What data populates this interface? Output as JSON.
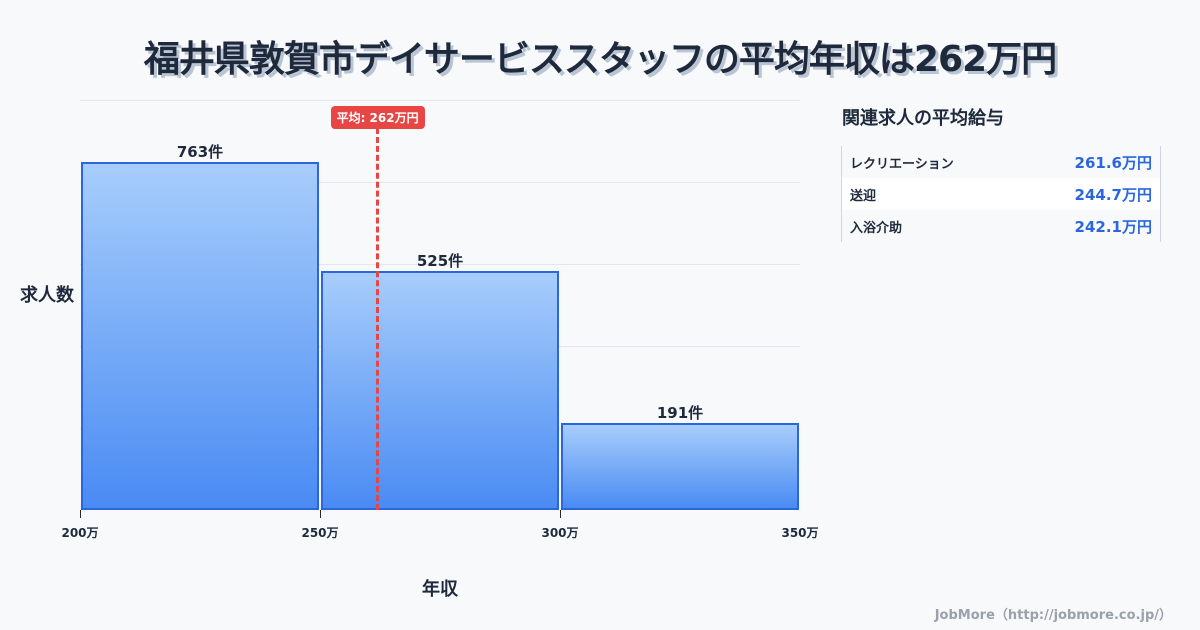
{
  "title": "福井県敦賀市デイサービススタッフの平均年収は262万円",
  "chart_data": {
    "type": "bar",
    "title": "福井県敦賀市デイサービススタッフの平均年収は262万円",
    "xlabel": "年収",
    "ylabel": "求人数",
    "categories": [
      "200万-250万",
      "250万-300万",
      "300万-350万"
    ],
    "bin_edges": [
      200,
      250,
      300,
      350
    ],
    "values": [
      763,
      525,
      191
    ],
    "value_labels": [
      "763件",
      "525件",
      "191件"
    ],
    "x_tick_labels": [
      "200万",
      "250万",
      "300万",
      "350万"
    ],
    "ylim": [
      0,
      900
    ],
    "grid": true,
    "average": {
      "value": 262,
      "label": "平均: 262万円",
      "color": "#e84545"
    },
    "bar_color_top": "#a7cdfb",
    "bar_color_bottom": "#4a8bf3",
    "bar_border": "#2b66e0"
  },
  "side_panel": {
    "title": "関連求人の平均給与",
    "rows": [
      {
        "name": "レクリエーション",
        "value": "261.6万円"
      },
      {
        "name": "送迎",
        "value": "244.7万円"
      },
      {
        "name": "入浴介助",
        "value": "242.1万円"
      }
    ]
  },
  "footer": "JobMore（http://jobmore.co.jp/）"
}
